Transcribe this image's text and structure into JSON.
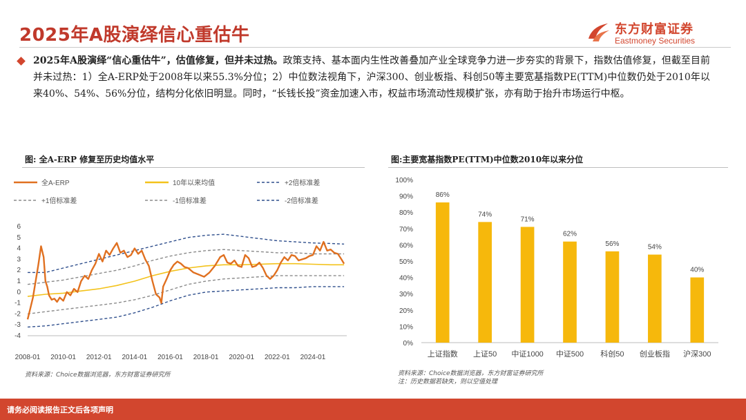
{
  "page": {
    "title": "2025年A股演绎信心重估牛",
    "brand_cn": "东方财富证券",
    "brand_en": "Eastmoney Securities",
    "footer": "请务必阅读报告正文后各项声明"
  },
  "summary": {
    "bold": "2025年A股演绎“信心重估牛”，估值修复，但并未过热。",
    "text": "政策支持、基本面内生性改善叠加产业全球竞争力进一步夯实的背景下，指数估值修复，但截至目前并未过热：1）全A-ERP处于2008年以来55.3%分位；2）中位数法视角下，沪深300、创业板指、科创50等主要宽基指数PE(TTM)中位数仍处于2010年以来40%、54%、56%分位，结构分化依旧明显。同时，“长钱长投”资金加速入市，权益市场流动性规模扩张，亦有助于抬升市场运行中枢。"
  },
  "left_chart": {
    "title": "图: 全A-ERP 修复至历史均值水平",
    "source": "资料来源：Choice数据浏览器，东方财富证券研究所"
  },
  "right_chart": {
    "title": "图:主要宽基指数PE(TTM)中位数2010年以来分位",
    "source": "资料来源：Choice数据浏览器，东方财富证券研究所",
    "note": "注：历史数据若缺失，则以空值处理"
  },
  "chart_data": [
    {
      "type": "line",
      "title": "图: 全A-ERP 修复至历史均值水平",
      "ylim": [
        -4,
        6
      ],
      "yticks": [
        "6",
        "5",
        "4",
        "3",
        "2",
        "1",
        "0",
        "-1",
        "-2",
        "-3",
        "-4"
      ],
      "xlim": [
        2008.0,
        2025.9
      ],
      "xticks": [
        {
          "value": 2008.0,
          "label": "2008-01"
        },
        {
          "value": 2010.0,
          "label": "2010-01"
        },
        {
          "value": 2012.0,
          "label": "2012-01"
        },
        {
          "value": 2014.0,
          "label": "2014-01"
        },
        {
          "value": 2016.0,
          "label": "2016-01"
        },
        {
          "value": 2018.0,
          "label": "2018-01"
        },
        {
          "value": 2020.0,
          "label": "2020-01"
        },
        {
          "value": 2022.0,
          "label": "2022-01"
        },
        {
          "value": 2024.0,
          "label": "2024-01"
        }
      ],
      "series": [
        {
          "name": "全A-ERP",
          "color": "#e07020",
          "style": "solid",
          "width": 2.4,
          "x": [
            2008.0,
            2008.15,
            2008.3,
            2008.45,
            2008.6,
            2008.75,
            2008.9,
            2009.0,
            2009.1,
            2009.2,
            2009.35,
            2009.5,
            2009.65,
            2009.8,
            2010.0,
            2010.2,
            2010.4,
            2010.6,
            2010.8,
            2011.0,
            2011.2,
            2011.4,
            2011.6,
            2011.8,
            2012.0,
            2012.2,
            2012.4,
            2012.6,
            2012.8,
            2013.0,
            2013.2,
            2013.4,
            2013.6,
            2013.8,
            2014.0,
            2014.2,
            2014.4,
            2014.6,
            2014.8,
            2015.0,
            2015.2,
            2015.4,
            2015.5,
            2015.6,
            2015.8,
            2016.0,
            2016.2,
            2016.4,
            2016.6,
            2016.8,
            2017.0,
            2017.3,
            2017.6,
            2017.9,
            2018.2,
            2018.5,
            2018.8,
            2019.0,
            2019.2,
            2019.4,
            2019.6,
            2019.8,
            2020.0,
            2020.2,
            2020.4,
            2020.6,
            2020.8,
            2021.0,
            2021.2,
            2021.4,
            2021.6,
            2021.8,
            2022.0,
            2022.2,
            2022.4,
            2022.6,
            2022.8,
            2023.0,
            2023.2,
            2023.4,
            2023.6,
            2023.8,
            2024.0,
            2024.2,
            2024.4,
            2024.6,
            2024.8,
            2025.0,
            2025.2,
            2025.4,
            2025.6,
            2025.75
          ],
          "y": [
            -2.5,
            -1.5,
            -0.5,
            1.0,
            2.5,
            4.2,
            3.2,
            1.0,
            0.5,
            -0.3,
            -0.7,
            -0.6,
            -0.9,
            -0.5,
            -0.8,
            0.0,
            -0.3,
            0.3,
            0.0,
            1.0,
            1.5,
            1.2,
            2.0,
            2.6,
            3.5,
            2.8,
            3.8,
            3.4,
            4.0,
            4.5,
            3.6,
            3.8,
            3.2,
            3.4,
            4.0,
            3.5,
            3.8,
            3.0,
            2.4,
            1.0,
            -0.2,
            -0.5,
            -1.0,
            0.5,
            1.2,
            2.0,
            2.5,
            2.8,
            2.6,
            2.3,
            2.2,
            1.8,
            1.6,
            1.4,
            1.8,
            2.4,
            3.2,
            3.4,
            2.7,
            2.6,
            2.9,
            2.4,
            2.3,
            3.4,
            3.1,
            2.3,
            2.4,
            2.7,
            2.2,
            1.5,
            1.2,
            1.5,
            2.0,
            2.7,
            3.2,
            2.9,
            3.4,
            3.3,
            2.9,
            3.0,
            3.1,
            3.3,
            3.4,
            4.2,
            3.8,
            4.6,
            3.8,
            3.9,
            3.6,
            3.5,
            3.0,
            2.6
          ]
        },
        {
          "name": "10年以来均值",
          "color": "#f3c21a",
          "style": "solid",
          "width": 1.6,
          "x": [
            2008.0,
            2009.0,
            2010.0,
            2011.0,
            2012.0,
            2013.0,
            2014.0,
            2015.0,
            2016.0,
            2017.0,
            2018.0,
            2019.0,
            2020.0,
            2021.0,
            2022.0,
            2023.0,
            2024.0,
            2025.0,
            2025.75
          ],
          "y": [
            -0.4,
            -0.2,
            -0.1,
            0.1,
            0.3,
            0.6,
            1.0,
            1.5,
            1.9,
            2.2,
            2.4,
            2.5,
            2.5,
            2.55,
            2.6,
            2.6,
            2.55,
            2.5,
            2.5
          ]
        },
        {
          "name": "+2倍标准差",
          "color": "#2e4e8c",
          "style": "dashed",
          "width": 1.4,
          "x": [
            2008.0,
            2009.0,
            2010.0,
            2011.0,
            2012.0,
            2013.0,
            2014.0,
            2015.0,
            2016.0,
            2017.0,
            2018.0,
            2019.0,
            2020.0,
            2021.0,
            2022.0,
            2023.0,
            2024.0,
            2025.0,
            2025.75
          ],
          "y": [
            1.8,
            1.8,
            2.2,
            2.6,
            3.0,
            3.4,
            3.8,
            4.2,
            4.6,
            5.0,
            5.2,
            5.3,
            5.1,
            4.9,
            4.7,
            4.6,
            4.5,
            4.45,
            4.4
          ]
        },
        {
          "name": "+1倍标准差",
          "color": "#8a8a8a",
          "style": "dashed",
          "width": 1.4,
          "x": [
            2008.0,
            2009.0,
            2010.0,
            2011.0,
            2012.0,
            2013.0,
            2014.0,
            2015.0,
            2016.0,
            2017.0,
            2018.0,
            2019.0,
            2020.0,
            2021.0,
            2022.0,
            2023.0,
            2024.0,
            2025.0,
            2025.75
          ],
          "y": [
            0.7,
            0.9,
            1.1,
            1.4,
            1.7,
            2.0,
            2.4,
            2.9,
            3.3,
            3.6,
            3.8,
            3.9,
            3.8,
            3.7,
            3.6,
            3.6,
            3.5,
            3.5,
            3.5
          ]
        },
        {
          "name": "-1倍标准差",
          "color": "#8a8a8a",
          "style": "dashed",
          "width": 1.4,
          "x": [
            2008.0,
            2009.0,
            2010.0,
            2011.0,
            2012.0,
            2013.0,
            2014.0,
            2015.0,
            2016.0,
            2017.0,
            2018.0,
            2019.0,
            2020.0,
            2021.0,
            2022.0,
            2023.0,
            2024.0,
            2025.0,
            2025.75
          ],
          "y": [
            -2.0,
            -1.8,
            -1.6,
            -1.4,
            -1.2,
            -1.0,
            -0.7,
            -0.3,
            0.2,
            0.7,
            1.0,
            1.2,
            1.3,
            1.4,
            1.5,
            1.5,
            1.5,
            1.5,
            1.5
          ]
        },
        {
          "name": "-2倍标准差",
          "color": "#2e4e8c",
          "style": "dashed",
          "width": 1.4,
          "x": [
            2008.0,
            2009.0,
            2010.0,
            2011.0,
            2012.0,
            2013.0,
            2014.0,
            2015.0,
            2016.0,
            2017.0,
            2018.0,
            2019.0,
            2020.0,
            2021.0,
            2022.0,
            2023.0,
            2024.0,
            2025.0,
            2025.75
          ],
          "y": [
            -3.2,
            -3.1,
            -2.9,
            -2.7,
            -2.5,
            -2.3,
            -1.9,
            -1.4,
            -0.8,
            -0.3,
            0.0,
            0.1,
            0.2,
            0.3,
            0.4,
            0.4,
            0.5,
            0.5,
            0.5
          ]
        }
      ],
      "legend_order": [
        "全A-ERP",
        "10年以来均值",
        "+2倍标准差",
        "+1倍标准差",
        "-1倍标准差",
        "-2倍标准差"
      ]
    },
    {
      "type": "bar",
      "title": "图:主要宽基指数PE(TTM)中位数2010年以来分位",
      "categories": [
        "上证指数",
        "上证50",
        "中证1000",
        "中证500",
        "科创50",
        "创业板指",
        "沪深300"
      ],
      "values": [
        86,
        74,
        71,
        62,
        56,
        54,
        40
      ],
      "data_labels": [
        "86%",
        "74%",
        "71%",
        "62%",
        "56%",
        "54%",
        "40%"
      ],
      "ylim": [
        0,
        100
      ],
      "yticks": [
        "100%",
        "90%",
        "80%",
        "70%",
        "60%",
        "50%",
        "40%",
        "30%",
        "20%",
        "10%",
        "0%"
      ],
      "color": "#f6b80c"
    }
  ]
}
